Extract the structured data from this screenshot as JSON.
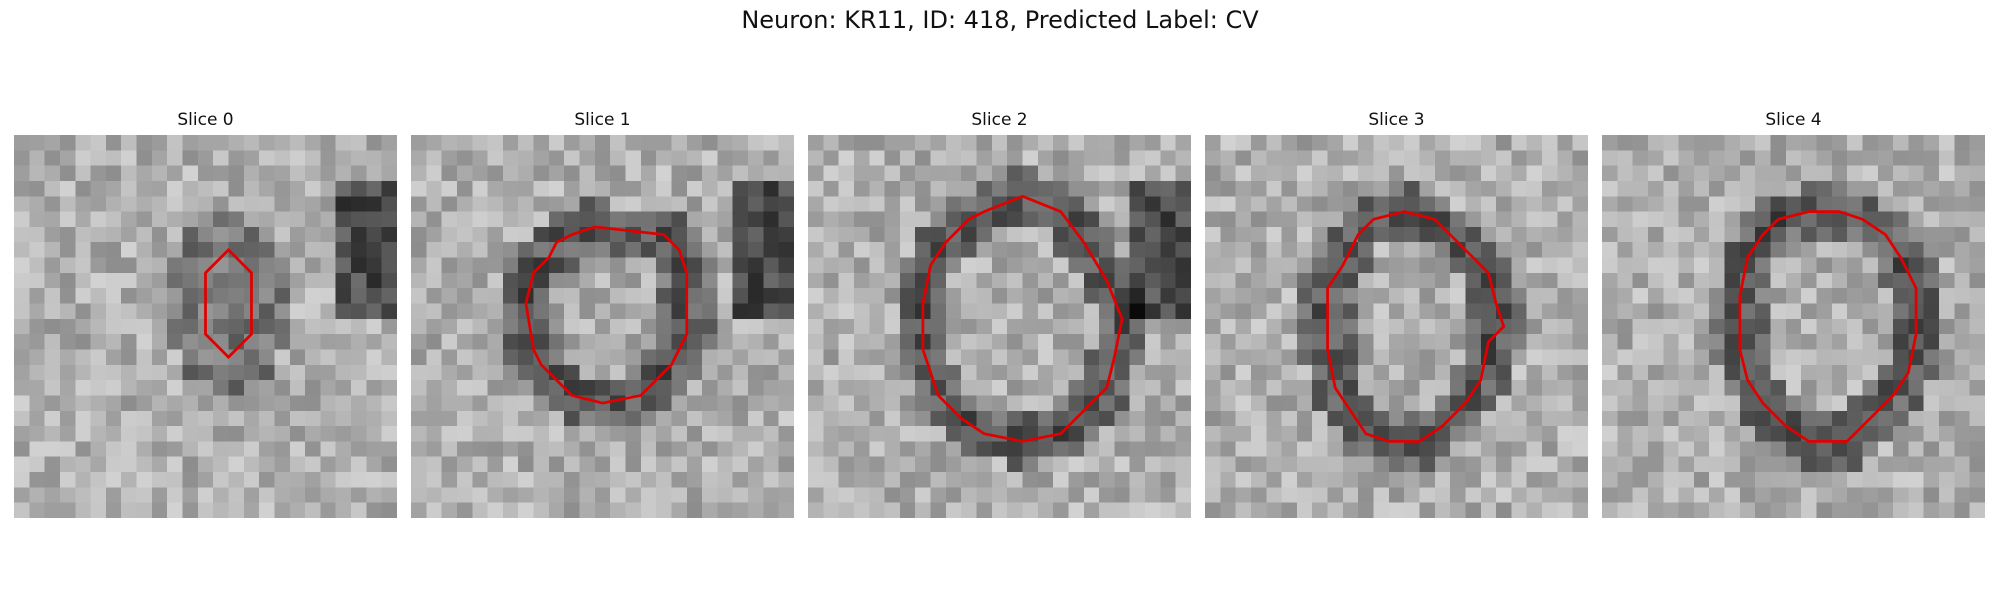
{
  "figure": {
    "title": "Neuron: KR11, ID: 418, Predicted Label: CV",
    "contour_color": "#e00000",
    "panels": [
      {
        "label": "Slice 0",
        "seed": 11,
        "contour": [
          [
            14.0,
            7.5
          ],
          [
            12.5,
            9.0
          ],
          [
            12.5,
            13.0
          ],
          [
            14.0,
            14.5
          ],
          [
            15.5,
            13.0
          ],
          [
            15.5,
            9.0
          ]
        ]
      },
      {
        "label": "Slice 1",
        "seed": 23,
        "contour": [
          [
            12.0,
            6.0
          ],
          [
            10.5,
            6.5
          ],
          [
            9.5,
            7.0
          ],
          [
            9.0,
            8.0
          ],
          [
            8.0,
            9.0
          ],
          [
            7.5,
            11.0
          ],
          [
            8.0,
            14.0
          ],
          [
            8.5,
            15.0
          ],
          [
            9.5,
            16.0
          ],
          [
            10.5,
            17.0
          ],
          [
            12.5,
            17.5
          ],
          [
            15.0,
            17.0
          ],
          [
            16.0,
            16.0
          ],
          [
            17.0,
            15.0
          ],
          [
            18.0,
            13.0
          ],
          [
            18.0,
            9.0
          ],
          [
            17.5,
            7.5
          ],
          [
            16.5,
            6.5
          ]
        ]
      },
      {
        "label": "Slice 2",
        "seed": 37,
        "contour": [
          [
            14.0,
            4.0
          ],
          [
            11.5,
            5.0
          ],
          [
            10.5,
            5.5
          ],
          [
            9.0,
            7.0
          ],
          [
            8.0,
            8.5
          ],
          [
            7.5,
            11.0
          ],
          [
            7.5,
            14.0
          ],
          [
            8.5,
            17.0
          ],
          [
            10.0,
            18.5
          ],
          [
            11.5,
            19.5
          ],
          [
            14.0,
            20.0
          ],
          [
            16.5,
            19.5
          ],
          [
            18.0,
            18.0
          ],
          [
            19.5,
            16.5
          ],
          [
            20.0,
            14.5
          ],
          [
            20.5,
            12.0
          ],
          [
            19.5,
            9.5
          ],
          [
            18.0,
            7.0
          ],
          [
            16.5,
            5.0
          ]
        ]
      },
      {
        "label": "Slice 3",
        "seed": 41,
        "contour": [
          [
            13.0,
            5.0
          ],
          [
            11.0,
            5.5
          ],
          [
            10.0,
            6.5
          ],
          [
            9.0,
            8.5
          ],
          [
            8.0,
            10.0
          ],
          [
            8.0,
            14.0
          ],
          [
            8.5,
            16.5
          ],
          [
            9.5,
            18.0
          ],
          [
            10.5,
            19.5
          ],
          [
            12.0,
            20.0
          ],
          [
            14.0,
            20.0
          ],
          [
            15.5,
            19.0
          ],
          [
            17.0,
            17.5
          ],
          [
            18.0,
            16.0
          ],
          [
            18.5,
            13.5
          ],
          [
            19.5,
            12.5
          ],
          [
            19.0,
            11.0
          ],
          [
            18.5,
            9.0
          ],
          [
            17.5,
            8.0
          ],
          [
            16.0,
            6.5
          ],
          [
            15.0,
            5.5
          ]
        ]
      },
      {
        "label": "Slice 4",
        "seed": 53,
        "contour": [
          [
            13.5,
            5.0
          ],
          [
            11.5,
            5.5
          ],
          [
            10.5,
            6.5
          ],
          [
            9.5,
            8.0
          ],
          [
            9.0,
            10.5
          ],
          [
            9.0,
            14.0
          ],
          [
            9.5,
            16.0
          ],
          [
            10.5,
            17.5
          ],
          [
            12.0,
            19.0
          ],
          [
            13.5,
            20.0
          ],
          [
            16.0,
            20.0
          ],
          [
            17.5,
            18.5
          ],
          [
            19.0,
            17.0
          ],
          [
            20.0,
            15.5
          ],
          [
            20.5,
            13.0
          ],
          [
            20.5,
            10.0
          ],
          [
            19.5,
            8.0
          ],
          [
            18.5,
            6.5
          ],
          [
            17.0,
            5.5
          ],
          [
            15.5,
            5.0
          ]
        ]
      }
    ]
  }
}
